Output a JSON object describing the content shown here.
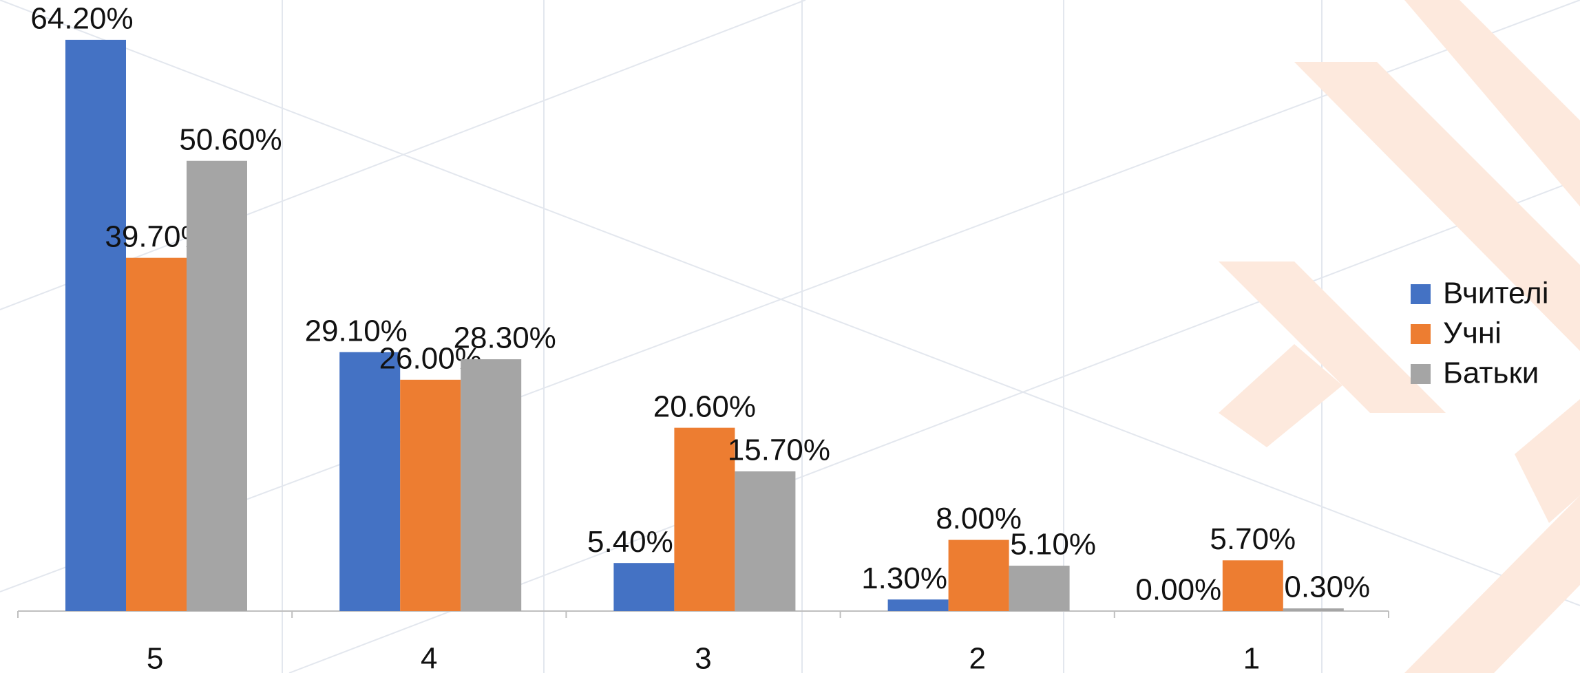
{
  "chart_data": {
    "type": "bar",
    "categories": [
      "5",
      "4",
      "3",
      "2",
      "1"
    ],
    "series": [
      {
        "name": "Вчителі",
        "color": "#4472c4",
        "values": [
          64.2,
          29.1,
          5.4,
          1.3,
          0
        ],
        "value_labels": [
          "64.20%",
          "29.10%",
          "5.40%",
          "1.30%",
          "0.00%"
        ]
      },
      {
        "name": "Учні",
        "color": "#ed7d31",
        "values": [
          39.7,
          26,
          20.6,
          8,
          5.7
        ],
        "value_labels": [
          "39.70%",
          "26.00%",
          "20.60%",
          "8.00%",
          "5.70%"
        ]
      },
      {
        "name": "Батьки",
        "color": "#a5a5a5",
        "values": [
          50.6,
          28.3,
          15.7,
          5.1,
          0.3
        ],
        "value_labels": [
          "50.60%",
          "28.30%",
          "15.70%",
          "5.10%",
          "0.30%"
        ]
      }
    ],
    "legend": "right"
  }
}
